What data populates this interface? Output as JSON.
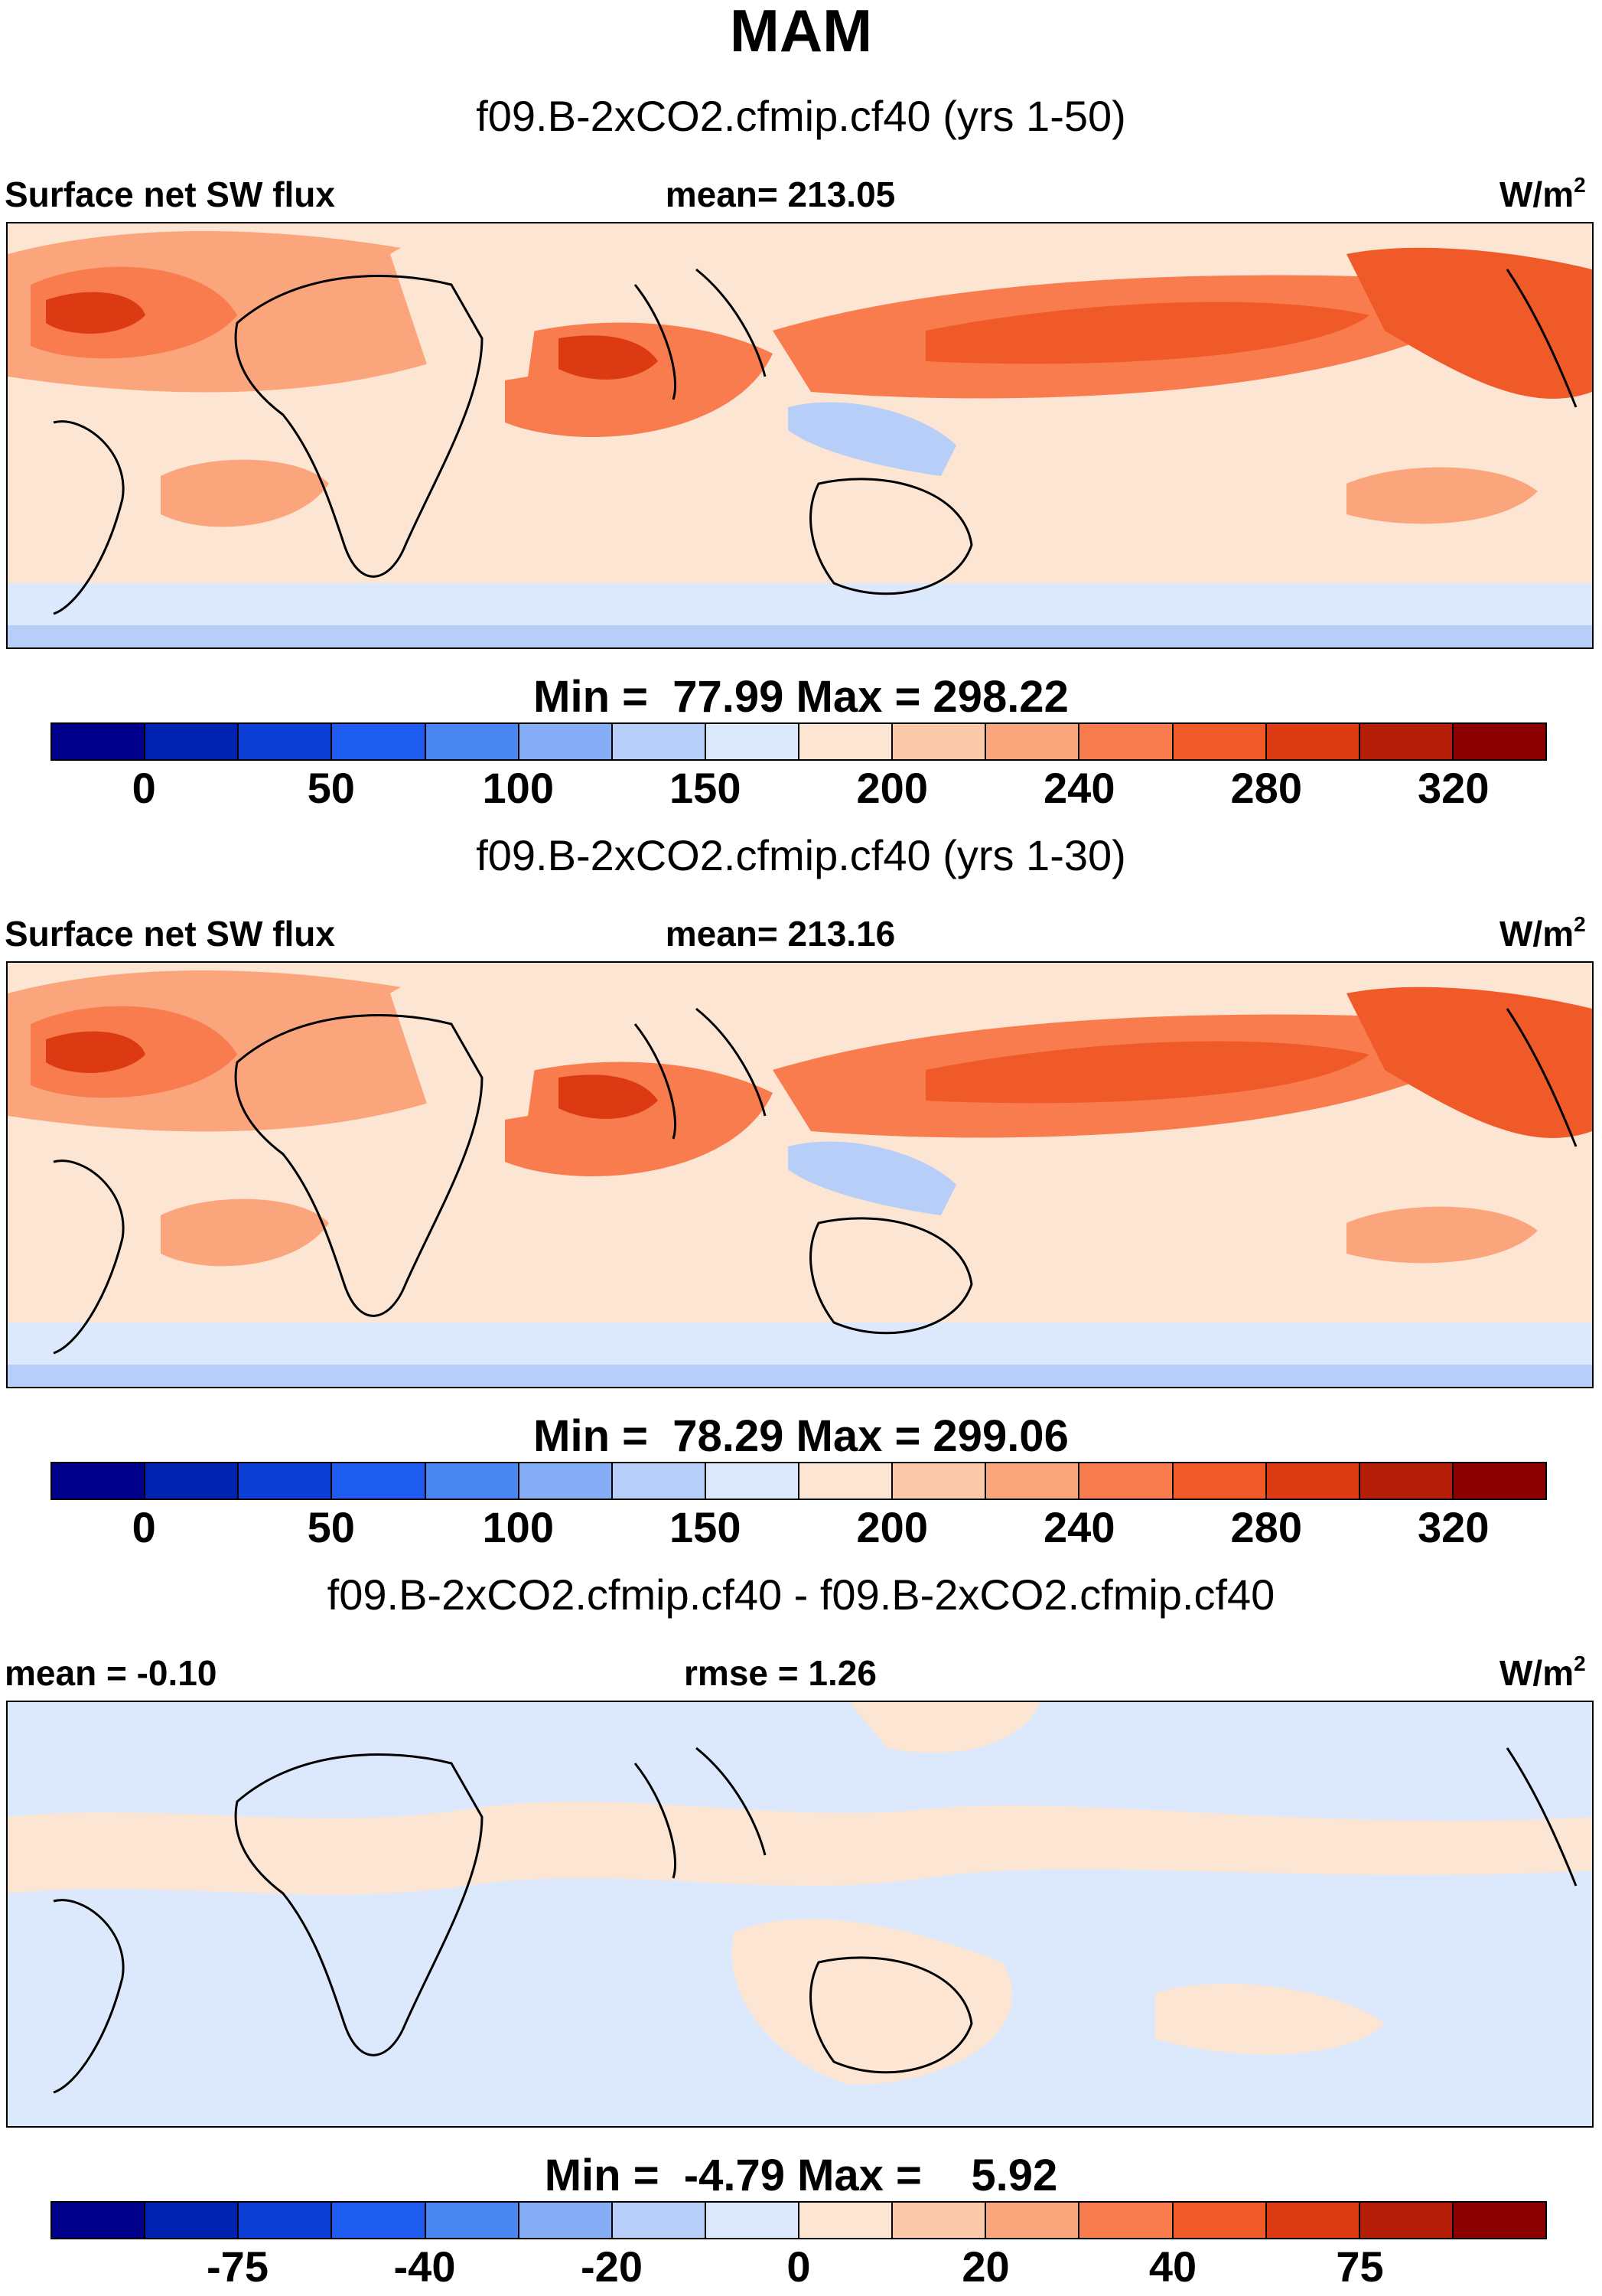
{
  "title": "MAM",
  "panels": [
    {
      "subtitle": "f09.B-2xCO2.cfmip.cf40 (yrs 1-50)",
      "left_label": "Surface net SW flux",
      "center_label": "mean= 213.05",
      "units": "W/m",
      "units_exp": "2",
      "minmax": "Min =  77.99 Max = 298.22",
      "colorbar_ticks": [
        "0",
        "50",
        "100",
        "150",
        "200",
        "240",
        "280",
        "320"
      ]
    },
    {
      "subtitle": "f09.B-2xCO2.cfmip.cf40 (yrs 1-30)",
      "left_label": "Surface net SW flux",
      "center_label": "mean= 213.16",
      "units": "W/m",
      "units_exp": "2",
      "minmax": "Min =  78.29 Max = 299.06",
      "colorbar_ticks": [
        "0",
        "50",
        "100",
        "150",
        "200",
        "240",
        "280",
        "320"
      ]
    },
    {
      "subtitle": "f09.B-2xCO2.cfmip.cf40 - f09.B-2xCO2.cfmip.cf40",
      "left_label": "mean =  -0.10",
      "center_label": "rmse =   1.26",
      "units": "W/m",
      "units_exp": "2",
      "minmax": "Min =  -4.79 Max =    5.92",
      "colorbar_ticks": [
        "-75",
        "-40",
        "-20",
        "0",
        "20",
        "40",
        "75"
      ]
    }
  ],
  "colorbar_colors": [
    "#00008b",
    "#0022b0",
    "#0b3fd6",
    "#1e5cf0",
    "#4a86f2",
    "#86aef6",
    "#b7cff8",
    "#dce8fb",
    "#fde5d4",
    "#fcc9aa",
    "#fba57d",
    "#f97c4e",
    "#f05a28",
    "#dc3a12",
    "#b41e08",
    "#8b0000"
  ],
  "map_colors": {
    "ocean_low": "#dce8fb",
    "pale": "#fde5d4",
    "light": "#fcc9aa",
    "mid": "#fba57d",
    "strong": "#f97c4e",
    "hot": "#f05a28",
    "max": "#dc3a12",
    "blue1": "#b7cff8",
    "blue2": "#86aef6",
    "coast": "#000000"
  }
}
